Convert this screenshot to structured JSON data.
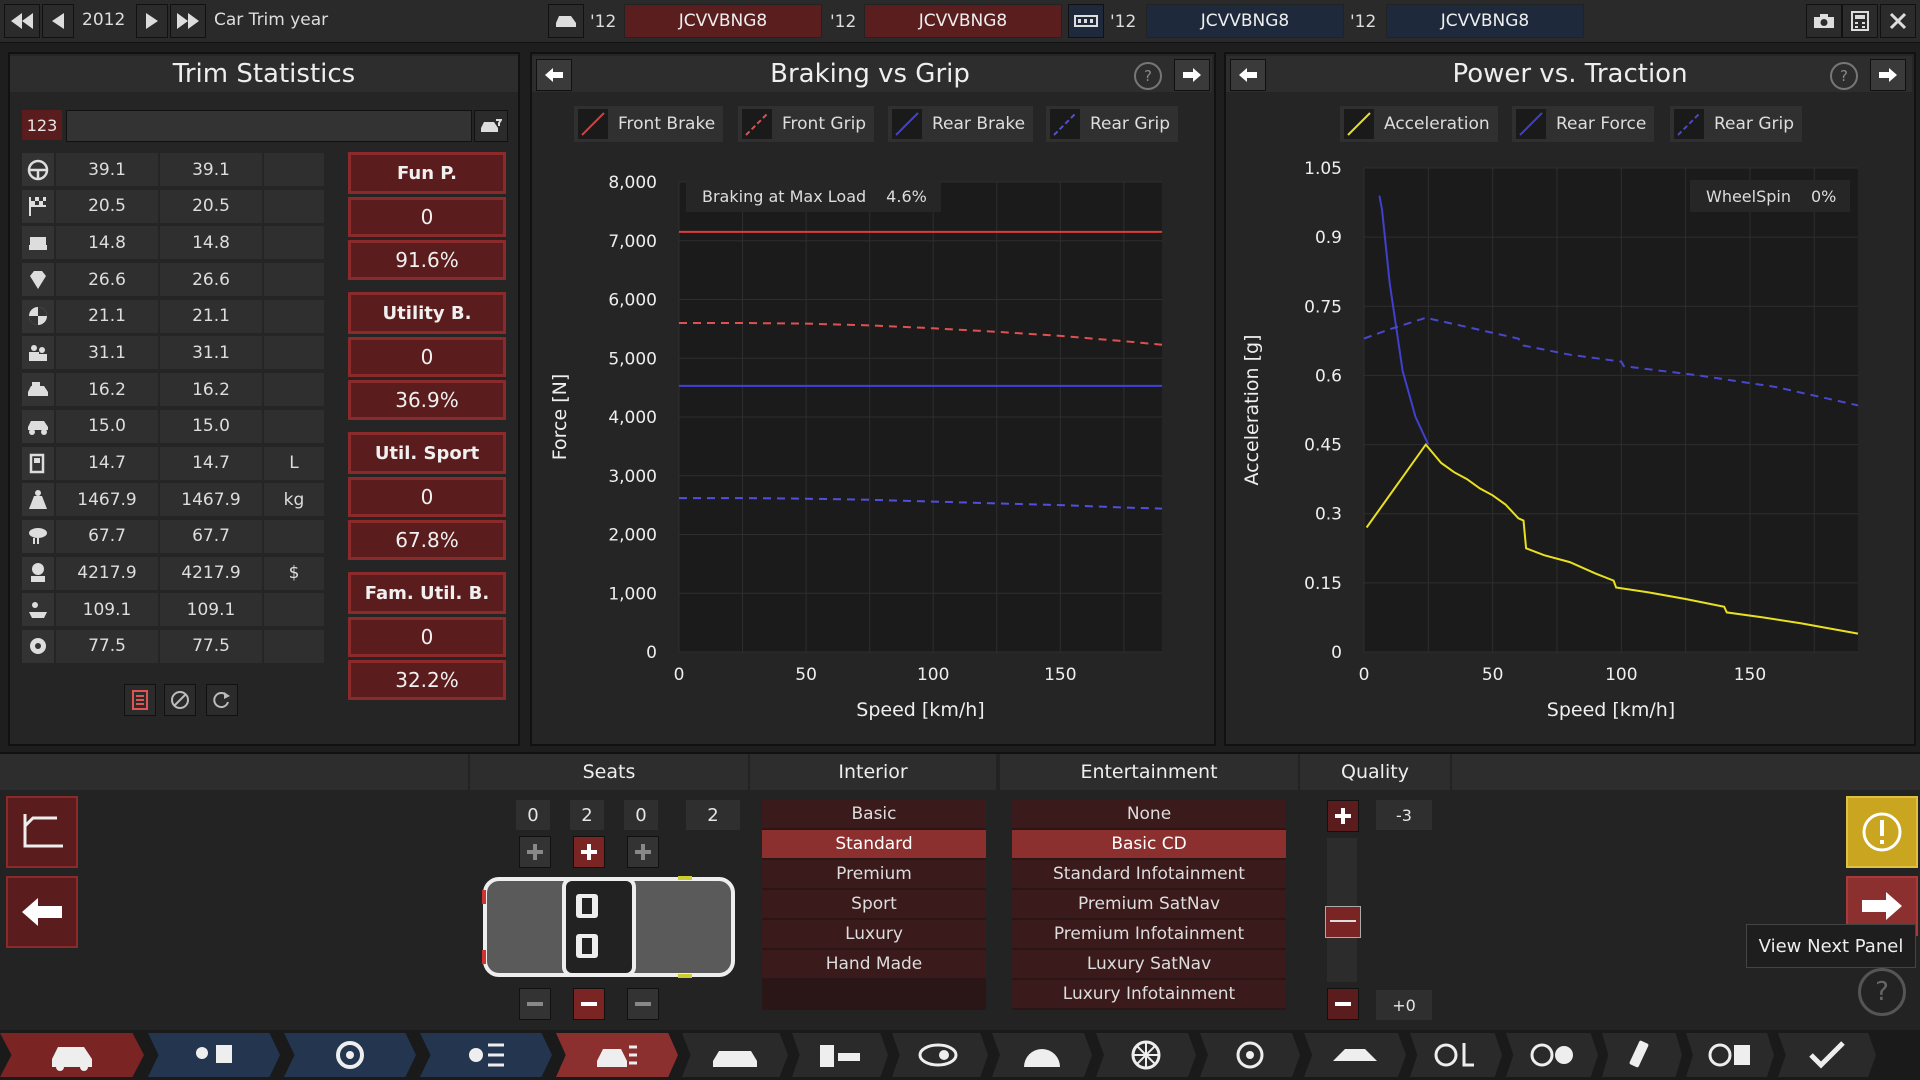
{
  "topbar": {
    "year": "2012",
    "label": "Car Trim year",
    "compare": [
      {
        "year": "'12",
        "code": "JCVVBNG8"
      },
      {
        "year": "'12",
        "code": "JCVVBNG8"
      },
      {
        "year": "'12",
        "code": "JCVVBNG8"
      },
      {
        "year": "'12",
        "code": "JCVVBNG8"
      }
    ]
  },
  "trim_stats": {
    "title": "Trim Statistics",
    "field_value": "123",
    "rows": [
      {
        "icon": "steering-wheel-icon",
        "a": "39.1",
        "b": "39.1",
        "unit": ""
      },
      {
        "icon": "checkered-flag-icon",
        "a": "20.5",
        "b": "20.5",
        "unit": ""
      },
      {
        "icon": "seat-icon",
        "a": "14.8",
        "b": "14.8",
        "unit": ""
      },
      {
        "icon": "diamond-icon",
        "a": "26.6",
        "b": "26.6",
        "unit": ""
      },
      {
        "icon": "safety-icon",
        "a": "21.1",
        "b": "21.1",
        "unit": ""
      },
      {
        "icon": "passengers-icon",
        "a": "31.1",
        "b": "31.1",
        "unit": ""
      },
      {
        "icon": "cargo-icon",
        "a": "16.2",
        "b": "16.2",
        "unit": ""
      },
      {
        "icon": "offroad-icon",
        "a": "15.0",
        "b": "15.0",
        "unit": ""
      },
      {
        "icon": "fuel-icon",
        "a": "14.7",
        "b": "14.7",
        "unit": "L"
      },
      {
        "icon": "weight-icon",
        "a": "1467.9",
        "b": "1467.9",
        "unit": "kg"
      },
      {
        "icon": "emissions-icon",
        "a": "67.7",
        "b": "67.7",
        "unit": ""
      },
      {
        "icon": "cost-icon",
        "a": "4217.9",
        "b": "4217.9",
        "unit": "$"
      },
      {
        "icon": "service-icon",
        "a": "109.1",
        "b": "109.1",
        "unit": ""
      },
      {
        "icon": "engineering-icon",
        "a": "77.5",
        "b": "77.5",
        "unit": ""
      }
    ],
    "categories": [
      {
        "name": "Fun P.",
        "value": "0",
        "pct": "91.6%"
      },
      {
        "name": "Utility B.",
        "value": "0",
        "pct": "36.9%"
      },
      {
        "name": "Util. Sport",
        "value": "0",
        "pct": "67.8%"
      },
      {
        "name": "Fam. Util. B.",
        "value": "0",
        "pct": "32.2%"
      }
    ]
  },
  "braking": {
    "title": "Braking vs Grip",
    "legend": [
      "Front Brake",
      "Front Grip",
      "Rear Brake",
      "Rear Grip"
    ],
    "info_label": "Braking at Max Load",
    "info_value": "4.6%"
  },
  "power": {
    "title": "Power vs. Traction",
    "legend": [
      "Acceleration",
      "Rear Force",
      "Rear Grip"
    ],
    "info_label": "WheelSpin",
    "info_value": "0%"
  },
  "chart_data": [
    {
      "type": "line",
      "title": "Braking vs Grip",
      "xlabel": "Speed [km/h]",
      "ylabel": "Force [N]",
      "xlim": [
        0,
        190
      ],
      "ylim": [
        0,
        8000
      ],
      "xticks": [
        "0",
        "50",
        "100",
        "150"
      ],
      "yticks": [
        "0",
        "1,000",
        "2,000",
        "3,000",
        "4,000",
        "5,000",
        "6,000",
        "7,000",
        "8,000"
      ],
      "series": [
        {
          "name": "Front Brake",
          "color": "#e03a3a",
          "dash": false,
          "x": [
            0,
            190
          ],
          "y": [
            7150,
            7150
          ]
        },
        {
          "name": "Front Grip",
          "color": "#e05050",
          "dash": true,
          "x": [
            0,
            25,
            50,
            75,
            100,
            125,
            150,
            175,
            190
          ],
          "y": [
            5600,
            5600,
            5590,
            5560,
            5510,
            5450,
            5380,
            5290,
            5230
          ]
        },
        {
          "name": "Rear Brake",
          "color": "#4040dd",
          "dash": false,
          "x": [
            0,
            190
          ],
          "y": [
            4530,
            4530
          ]
        },
        {
          "name": "Rear Grip",
          "color": "#5050dd",
          "dash": true,
          "x": [
            0,
            25,
            50,
            75,
            100,
            125,
            150,
            175,
            190
          ],
          "y": [
            2620,
            2620,
            2610,
            2590,
            2560,
            2530,
            2500,
            2460,
            2440
          ]
        }
      ]
    },
    {
      "type": "line",
      "title": "Power vs. Traction",
      "xlabel": "Speed [km/h]",
      "ylabel": "Acceleration [g]",
      "xlim": [
        0,
        192
      ],
      "ylim": [
        0,
        1.05
      ],
      "xticks": [
        "0",
        "50",
        "100",
        "150"
      ],
      "yticks": [
        "0",
        "0.15",
        "0.3",
        "0.45",
        "0.6",
        "0.75",
        "0.9",
        "1.05"
      ],
      "series": [
        {
          "name": "Acceleration",
          "color": "#e8e020",
          "dash": false,
          "x": [
            1,
            24,
            30,
            35,
            40,
            45,
            50,
            55,
            60,
            62,
            63,
            70,
            80,
            90,
            97,
            98,
            110,
            125,
            140,
            141,
            155,
            170,
            192
          ],
          "y": [
            0.27,
            0.45,
            0.41,
            0.39,
            0.375,
            0.355,
            0.34,
            0.32,
            0.29,
            0.285,
            0.225,
            0.21,
            0.195,
            0.17,
            0.155,
            0.14,
            0.13,
            0.115,
            0.098,
            0.086,
            0.075,
            0.062,
            0.04
          ]
        },
        {
          "name": "Rear Force",
          "color": "#4040cc",
          "dash": false,
          "x": [
            6,
            7,
            10,
            15,
            20,
            25
          ],
          "y": [
            0.99,
            0.96,
            0.8,
            0.61,
            0.51,
            0.45
          ]
        },
        {
          "name": "Rear Grip",
          "color": "#4848cc",
          "dash": true,
          "x": [
            0,
            10,
            24,
            40,
            60,
            62,
            80,
            100,
            101,
            130,
            160,
            192
          ],
          "y": [
            0.68,
            0.7,
            0.725,
            0.705,
            0.68,
            0.665,
            0.645,
            0.63,
            0.62,
            0.6,
            0.575,
            0.535
          ]
        }
      ]
    }
  ],
  "seats": {
    "header": "Seats",
    "counts": [
      "0",
      "2",
      "0",
      "2"
    ]
  },
  "interior": {
    "header": "Interior",
    "options": [
      "Basic",
      "Standard",
      "Premium",
      "Sport",
      "Luxury",
      "Hand Made"
    ],
    "selected": 1
  },
  "entertainment": {
    "header": "Entertainment",
    "options": [
      "None",
      "Basic CD",
      "Standard Infotainment",
      "Premium SatNav",
      "Premium Infotainment",
      "Luxury SatNav",
      "Luxury Infotainment"
    ],
    "selected": 1
  },
  "quality": {
    "header": "Quality",
    "top_value": "-3",
    "bottom_value": "+0",
    "level": 0.5
  },
  "tooltip": "View Next Panel",
  "colors": {
    "accent_red": "#8c2f2f",
    "accent_blue": "#1e2a3c",
    "warning_yellow": "#c9a520"
  }
}
